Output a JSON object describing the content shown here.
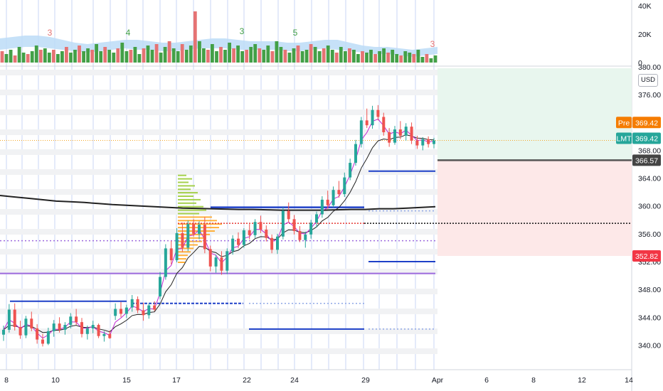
{
  "chart_data": [
    {
      "type": "bar",
      "title": "",
      "subtitle": "",
      "series": [
        {
          "name": "",
          "values": [
            8,
            6,
            9,
            5,
            11,
            7,
            6,
            8,
            12,
            9,
            10,
            7,
            9,
            6,
            8,
            11,
            7,
            9,
            12,
            8,
            10,
            9,
            13,
            8,
            11,
            9,
            7,
            10,
            14,
            8,
            9,
            11,
            6,
            10,
            12,
            9,
            13,
            7,
            11,
            15,
            10,
            8,
            13,
            9,
            12,
            36,
            15,
            10,
            9,
            13,
            8,
            11,
            9,
            14,
            10,
            12,
            8,
            9,
            11,
            13,
            10,
            9,
            12,
            8,
            15,
            11,
            9,
            7,
            10,
            12,
            8,
            9,
            13,
            11,
            8,
            10,
            12,
            9,
            7,
            11,
            8,
            10,
            9,
            6,
            8,
            7,
            9,
            6,
            8,
            10,
            7,
            9,
            6,
            5,
            8,
            7,
            6,
            9,
            4,
            6,
            3,
            5
          ]
        }
      ],
      "volume_ma_upper": [
        17,
        18,
        19,
        19,
        18,
        16,
        14,
        13,
        14,
        15,
        16,
        16,
        15,
        14,
        14,
        15,
        16,
        17,
        17,
        16,
        15,
        15,
        15,
        14,
        14,
        15,
        16,
        16,
        14,
        12,
        11,
        11,
        10,
        9,
        10,
        11
      ],
      "volume_ma_lower": [
        9,
        10,
        11,
        11,
        10,
        9,
        8,
        7,
        8,
        9,
        10,
        9,
        9,
        8,
        8,
        9,
        10,
        10,
        10,
        9,
        9,
        9,
        9,
        8,
        8,
        9,
        10,
        9,
        8,
        7,
        6,
        6,
        5,
        4,
        5,
        6
      ],
      "annotations": [
        "3",
        "4",
        "3",
        "5",
        "3"
      ],
      "ylim": [
        0,
        40000
      ],
      "y_ticks": [
        "40K",
        "20K",
        "0"
      ]
    },
    {
      "type": "candlestick",
      "title": "",
      "xlabel": "",
      "ylabel": "",
      "currency": "USD",
      "ylim": [
        338,
        380
      ],
      "y_ticks": [
        "380.00",
        "376.00",
        "372.00",
        "368.00",
        "364.00",
        "360.00",
        "356.00",
        "352.00",
        "348.00",
        "344.00",
        "340.00"
      ],
      "x_ticks": [
        "8",
        "10",
        "15",
        "17",
        "22",
        "24",
        "29",
        "Apr",
        "6",
        "8",
        "12",
        "14"
      ],
      "candles": [
        [
          341.5,
          342.8,
          340.6,
          342.2
        ],
        [
          342.2,
          345.9,
          341.8,
          345.1
        ],
        [
          345.1,
          346.0,
          342.1,
          342.6
        ],
        [
          342.6,
          343.5,
          340.9,
          341.4
        ],
        [
          341.4,
          344.2,
          341.0,
          343.8
        ],
        [
          343.8,
          344.8,
          342.0,
          342.4
        ],
        [
          342.4,
          343.0,
          340.2,
          340.8
        ],
        [
          340.8,
          341.6,
          339.8,
          340.2
        ],
        [
          340.2,
          342.5,
          340.0,
          342.0
        ],
        [
          342.0,
          343.6,
          341.2,
          343.1
        ],
        [
          343.1,
          344.0,
          341.8,
          342.2
        ],
        [
          342.2,
          343.3,
          341.5,
          342.9
        ],
        [
          342.9,
          344.6,
          342.4,
          344.1
        ],
        [
          344.1,
          345.2,
          342.9,
          343.3
        ],
        [
          343.3,
          343.9,
          341.1,
          341.6
        ],
        [
          341.6,
          342.8,
          340.8,
          342.4
        ],
        [
          342.4,
          343.5,
          341.7,
          342.9
        ],
        [
          342.9,
          343.1,
          341.0,
          341.3
        ],
        [
          341.3,
          342.0,
          340.5,
          341.6
        ],
        [
          341.6,
          342.1,
          340.9,
          341.0
        ],
        [
          344.2,
          346.0,
          343.6,
          345.2
        ],
        [
          345.2,
          346.2,
          344.0,
          344.5
        ],
        [
          344.5,
          345.8,
          343.9,
          345.4
        ],
        [
          345.4,
          347.2,
          344.8,
          346.6
        ],
        [
          346.6,
          347.0,
          344.6,
          345.0
        ],
        [
          345.0,
          346.1,
          343.5,
          344.3
        ],
        [
          344.3,
          346.0,
          343.8,
          345.7
        ],
        [
          345.7,
          346.3,
          344.9,
          345.1
        ],
        [
          347.0,
          350.5,
          346.6,
          349.8
        ],
        [
          349.8,
          354.5,
          349.4,
          353.9
        ],
        [
          353.9,
          355.0,
          351.6,
          352.2
        ],
        [
          352.2,
          356.8,
          351.9,
          356.1
        ],
        [
          356.1,
          357.6,
          353.4,
          354.0
        ],
        [
          354.0,
          357.9,
          353.5,
          357.4
        ],
        [
          357.4,
          358.1,
          355.6,
          356.0
        ],
        [
          356.0,
          357.8,
          355.2,
          357.3
        ],
        [
          357.3,
          358.4,
          353.2,
          353.8
        ],
        [
          353.8,
          354.3,
          350.6,
          351.3
        ],
        [
          351.3,
          353.0,
          350.4,
          352.6
        ],
        [
          352.6,
          353.5,
          350.1,
          350.7
        ],
        [
          350.7,
          353.9,
          350.2,
          353.5
        ],
        [
          353.5,
          355.8,
          353.0,
          355.3
        ],
        [
          355.3,
          356.2,
          353.9,
          354.4
        ],
        [
          354.4,
          356.8,
          354.0,
          356.5
        ],
        [
          356.5,
          357.4,
          355.2,
          355.8
        ],
        [
          355.8,
          358.1,
          355.4,
          357.7
        ],
        [
          357.7,
          358.6,
          356.1,
          356.6
        ],
        [
          356.6,
          357.2,
          354.9,
          355.4
        ],
        [
          355.4,
          355.9,
          353.2,
          353.7
        ],
        [
          353.7,
          356.0,
          353.1,
          355.6
        ],
        [
          355.6,
          359.8,
          355.2,
          359.3
        ],
        [
          359.3,
          360.5,
          357.6,
          358.1
        ],
        [
          358.1,
          358.7,
          355.9,
          356.4
        ],
        [
          356.4,
          357.1,
          354.8,
          355.1
        ],
        [
          355.1,
          356.3,
          354.0,
          355.9
        ],
        [
          355.9,
          358.0,
          355.3,
          357.6
        ],
        [
          357.6,
          359.2,
          356.9,
          358.8
        ],
        [
          358.8,
          361.4,
          358.3,
          360.9
        ],
        [
          360.9,
          362.2,
          359.6,
          360.1
        ],
        [
          360.1,
          362.8,
          359.8,
          362.3
        ],
        [
          362.3,
          363.6,
          361.2,
          361.7
        ],
        [
          361.7,
          364.8,
          361.3,
          364.1
        ],
        [
          364.1,
          366.8,
          363.7,
          366.2
        ],
        [
          366.2,
          369.5,
          365.8,
          368.9
        ],
        [
          368.9,
          372.8,
          368.4,
          372.3
        ],
        [
          372.3,
          374.0,
          371.2,
          371.6
        ],
        [
          371.6,
          374.4,
          371.1,
          373.8
        ],
        [
          373.8,
          374.5,
          372.3,
          372.8
        ],
        [
          372.8,
          373.4,
          370.1,
          370.6
        ],
        [
          370.6,
          371.2,
          368.5,
          369.1
        ],
        [
          369.1,
          371.5,
          368.8,
          371.0
        ],
        [
          371.0,
          372.2,
          369.6,
          370.1
        ],
        [
          370.1,
          371.9,
          369.4,
          371.4
        ],
        [
          371.4,
          372.0,
          368.9,
          369.4
        ],
        [
          369.4,
          370.1,
          368.2,
          368.7
        ],
        [
          368.7,
          369.9,
          368.0,
          369.6
        ],
        [
          369.6,
          370.0,
          368.4,
          368.9
        ],
        [
          368.9,
          369.8,
          368.3,
          369.42
        ]
      ],
      "price_levels": {
        "pre_label": "Pre",
        "pre_price": "369.42",
        "lmt_label": "LMT",
        "lmt_price": "369.42",
        "level_price": "366.57",
        "stop_price": "352.82"
      },
      "moving_average_long": [
        361.5,
        361.3,
        361.1,
        360.9,
        360.7,
        360.6,
        360.5,
        360.35,
        360.2,
        360.1,
        360.0,
        359.9,
        359.8,
        359.7,
        359.65,
        359.6,
        359.55,
        359.5,
        359.5,
        359.45,
        359.4,
        359.4,
        359.4,
        359.4,
        359.45,
        359.5,
        359.5,
        359.6,
        359.6,
        359.7,
        359.8,
        359.9
      ],
      "volume_profile": "visible",
      "horizontal_levels": "visible"
    }
  ],
  "colors": {
    "up": "#26a69a",
    "down": "#ef5350",
    "vol_up": "#43a047",
    "vol_down": "#e57373",
    "level_blue": "#1e40c8",
    "purple": "#9c6ade",
    "ma_black": "#222222",
    "pre_tag": "#f57c00",
    "lmt_tag": "#26a69a",
    "stop_tag": "#f23645",
    "level_tag": "#444444",
    "profit_zone": "#e8f6ee",
    "loss_zone": "#fde8e8"
  }
}
